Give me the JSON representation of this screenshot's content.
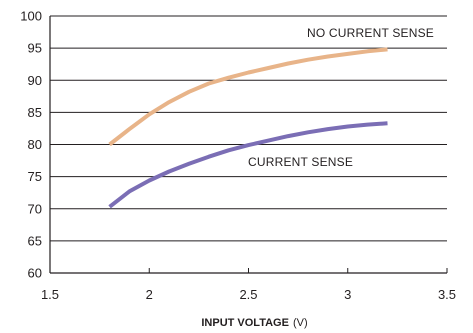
{
  "chart_data": {
    "type": "line",
    "xlabel": "INPUT VOLTAGE",
    "xlabel_unit": "(V)",
    "ylabel": "",
    "xlim": [
      1.5,
      3.5
    ],
    "ylim": [
      60,
      100
    ],
    "x_ticks": [
      "1.5",
      "2",
      "2.5",
      "3",
      "3.5"
    ],
    "y_ticks": [
      "60",
      "65",
      "70",
      "75",
      "80",
      "85",
      "90",
      "95",
      "100"
    ],
    "grid": "horizontal",
    "series": [
      {
        "name": "NO CURRENT SENSE",
        "color": "#e8b489",
        "x": [
          1.8,
          1.9,
          2.0,
          2.1,
          2.2,
          2.3,
          2.4,
          2.5,
          2.6,
          2.7,
          2.8,
          2.9,
          3.0,
          3.1,
          3.2
        ],
        "y": [
          80.0,
          82.4,
          84.7,
          86.6,
          88.2,
          89.5,
          90.4,
          91.2,
          91.9,
          92.6,
          93.2,
          93.7,
          94.1,
          94.5,
          94.8
        ]
      },
      {
        "name": "CURRENT SENSE",
        "color": "#7b6eb5",
        "x": [
          1.8,
          1.9,
          2.0,
          2.1,
          2.2,
          2.3,
          2.4,
          2.5,
          2.6,
          2.7,
          2.8,
          2.9,
          3.0,
          3.1,
          3.2
        ],
        "y": [
          70.3,
          72.7,
          74.4,
          75.8,
          77.0,
          78.1,
          79.1,
          79.9,
          80.6,
          81.3,
          81.9,
          82.4,
          82.8,
          83.1,
          83.3
        ]
      }
    ]
  }
}
